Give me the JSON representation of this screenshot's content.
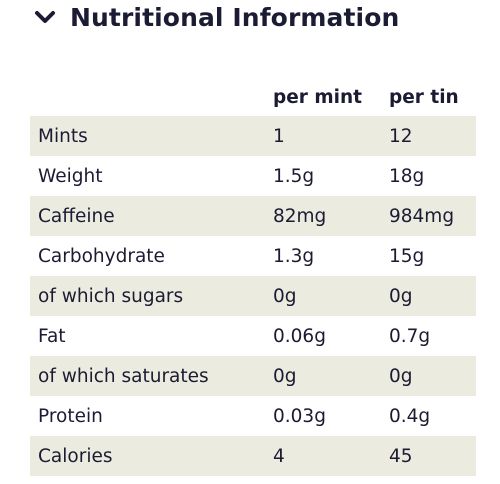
{
  "header": {
    "title": "Nutritional Information",
    "icon": "chevron-down-icon"
  },
  "table": {
    "columns": [
      "",
      "per mint",
      "per tin"
    ],
    "rows": [
      [
        "Mints",
        "1",
        "12"
      ],
      [
        "Weight",
        "1.5g",
        "18g"
      ],
      [
        "Caffeine",
        "82mg",
        "984mg"
      ],
      [
        "Carbohydrate",
        "1.3g",
        "15g"
      ],
      [
        "of which sugars",
        "0g",
        "0g"
      ],
      [
        "Fat",
        "0.06g",
        "0.7g"
      ],
      [
        "of which saturates",
        "0g",
        "0g"
      ],
      [
        "Protein",
        "0.03g",
        "0.4g"
      ],
      [
        "Calories",
        "4",
        "45"
      ]
    ]
  },
  "colors": {
    "text": "#1b1b33",
    "row_shade": "#ecebdf",
    "background": "#ffffff"
  }
}
